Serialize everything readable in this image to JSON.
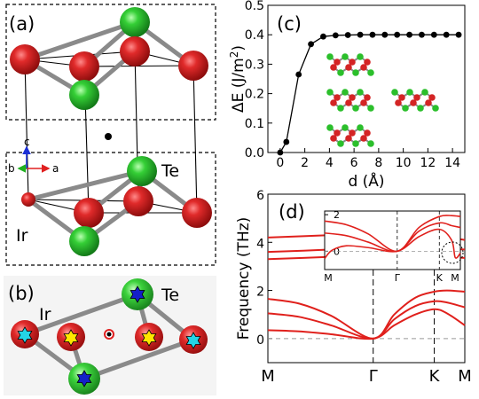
{
  "panels": {
    "a": "(a)",
    "b": "(b)",
    "c": "(c)",
    "d": "(d)"
  },
  "structure": {
    "atom_labels": {
      "te": "Te",
      "ir": "Ir"
    },
    "axis_labels": {
      "c": "c",
      "b": "b",
      "a": "a"
    },
    "colors": {
      "ir": "#d61f1f",
      "te": "#27c22b",
      "bond": "#8a8a8a"
    }
  },
  "chart_data": [
    {
      "type": "scatter",
      "panel": "(c)",
      "xlabel": "d (Å)",
      "ylabel": "ΔE (J/m²)",
      "ylabel_parts": {
        "base": "ΔE (J/m",
        "sup": "2",
        "close": ")"
      },
      "xlim": [
        -1,
        15
      ],
      "ylim": [
        0,
        0.5
      ],
      "xticks": [
        0,
        2,
        4,
        6,
        8,
        10,
        12,
        14
      ],
      "yticks": [
        0.0,
        0.1,
        0.2,
        0.3,
        0.4,
        0.5
      ],
      "ytick_labels": [
        "0.0",
        "0.1",
        "0.2",
        "0.3",
        "0.4",
        "0.5"
      ],
      "x": [
        0,
        0.5,
        1.5,
        2.5,
        3.5,
        4.5,
        5.5,
        6.5,
        7.5,
        8.5,
        9.5,
        10.5,
        11.5,
        12.5,
        13.5,
        14.5
      ],
      "y": [
        0.0,
        0.036,
        0.265,
        0.368,
        0.394,
        0.398,
        0.399,
        0.4,
        0.4,
        0.4,
        0.4,
        0.4,
        0.4,
        0.4,
        0.4,
        0.4
      ],
      "marker_color": "#000000"
    },
    {
      "type": "line",
      "panel": "(d)",
      "ylabel": "Frequency (THz)",
      "ylim": [
        -1,
        6
      ],
      "yticks": [
        0,
        2,
        4,
        6
      ],
      "kpath_labels": [
        "M",
        "Γ",
        "K",
        "M"
      ],
      "kpath_positions": [
        0,
        1,
        1.58,
        1.87
      ],
      "line_color": "#e0201c",
      "branches": [
        {
          "x": [
            0,
            0.3,
            0.6,
            1.0,
            1.2,
            1.4,
            1.58,
            1.7,
            1.87
          ],
          "y": [
            0.35,
            0.3,
            0.18,
            0.0,
            0.55,
            1.0,
            1.22,
            1.05,
            0.55
          ]
        },
        {
          "x": [
            0,
            0.3,
            0.6,
            1.0,
            1.2,
            1.4,
            1.58,
            1.7,
            1.87
          ],
          "y": [
            1.05,
            0.9,
            0.55,
            0.0,
            0.8,
            1.35,
            1.55,
            1.5,
            1.3
          ]
        },
        {
          "x": [
            0,
            0.3,
            0.6,
            1.0,
            1.2,
            1.4,
            1.58,
            1.7,
            1.87
          ],
          "y": [
            1.65,
            1.45,
            0.95,
            0.0,
            1.0,
            1.7,
            1.95,
            2.0,
            1.95
          ]
        },
        {
          "x": [
            0,
            0.6,
            1.0,
            1.58,
            1.87
          ],
          "y": [
            4.2,
            4.3,
            4.35,
            4.25,
            4.1
          ]
        },
        {
          "x": [
            0,
            0.6,
            1.0,
            1.58,
            1.87
          ],
          "y": [
            3.6,
            3.7,
            3.8,
            3.75,
            3.7
          ]
        },
        {
          "x": [
            0,
            0.6,
            1.0,
            1.58,
            1.87
          ],
          "y": [
            3.3,
            3.4,
            3.5,
            3.4,
            3.35
          ]
        }
      ],
      "inset": {
        "kpath_labels": [
          "M",
          "Γ",
          "K",
          "M"
        ],
        "ylim": [
          -1,
          2.2
        ],
        "yticks": [
          0,
          2
        ],
        "branches": [
          {
            "x": [
              0,
              0.1,
              0.3,
              0.6,
              1.0,
              1.3,
              1.58,
              1.75,
              1.8,
              1.87
            ],
            "y": [
              -0.4,
              0.05,
              0.3,
              0.2,
              0.0,
              0.8,
              1.2,
              0.6,
              -0.35,
              -0.1
            ]
          },
          {
            "x": [
              0,
              0.3,
              0.6,
              1.0,
              1.3,
              1.58,
              1.75,
              1.87
            ],
            "y": [
              1.0,
              0.85,
              0.5,
              0.0,
              1.1,
              1.55,
              1.4,
              1.3
            ]
          },
          {
            "x": [
              0,
              0.3,
              0.6,
              1.0,
              1.3,
              1.58,
              1.75,
              1.87
            ],
            "y": [
              1.65,
              1.45,
              0.95,
              0.0,
              1.3,
              1.9,
              1.95,
              1.9
            ]
          }
        ]
      }
    }
  ]
}
